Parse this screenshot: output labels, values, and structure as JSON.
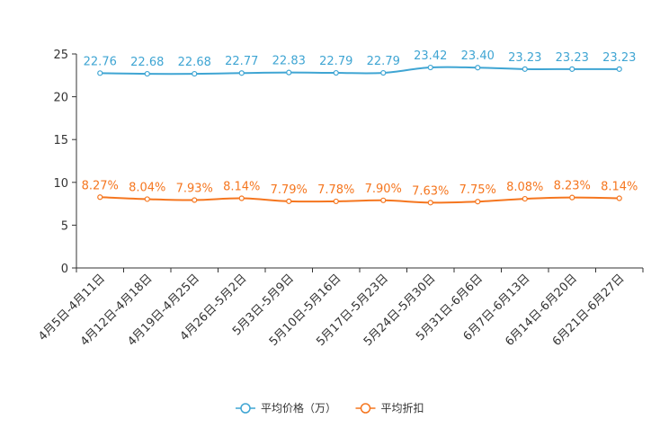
{
  "chart_data": {
    "type": "line",
    "title": "",
    "xlabel": "",
    "ylabel": "",
    "ylim": [
      0,
      25
    ],
    "yticks": [
      0,
      5,
      10,
      15,
      20,
      25
    ],
    "grid": false,
    "legend_position": "bottom-center",
    "categories": [
      "4月5日-4月11日",
      "4月12日-4月18日",
      "4月19日-4月25日",
      "4月26日-5月2日",
      "5月3日-5月9日",
      "5月10日-5月16日",
      "5月17日-5月23日",
      "5月24日-5月30日",
      "5月31日-6月6日",
      "6月7日-6月13日",
      "6月14日-6月20日",
      "6月21日-6月27日"
    ],
    "series": [
      {
        "name": "平均价格（万）",
        "color": "#3fa5d3",
        "values": [
          22.76,
          22.68,
          22.68,
          22.77,
          22.83,
          22.79,
          22.79,
          23.42,
          23.4,
          23.23,
          23.23,
          23.23
        ],
        "labels": [
          "22.76",
          "22.68",
          "22.68",
          "22.77",
          "22.83",
          "22.79",
          "22.79",
          "23.42",
          "23.40",
          "23.23",
          "23.23",
          "23.23"
        ]
      },
      {
        "name": "平均折扣",
        "color": "#f5761f",
        "values": [
          8.27,
          8.04,
          7.93,
          8.14,
          7.79,
          7.78,
          7.9,
          7.63,
          7.75,
          8.08,
          8.23,
          8.14
        ],
        "labels": [
          "8.27%",
          "8.04%",
          "7.93%",
          "8.14%",
          "7.79%",
          "7.78%",
          "7.90%",
          "7.63%",
          "7.75%",
          "8.08%",
          "8.23%",
          "8.14%"
        ]
      }
    ]
  }
}
